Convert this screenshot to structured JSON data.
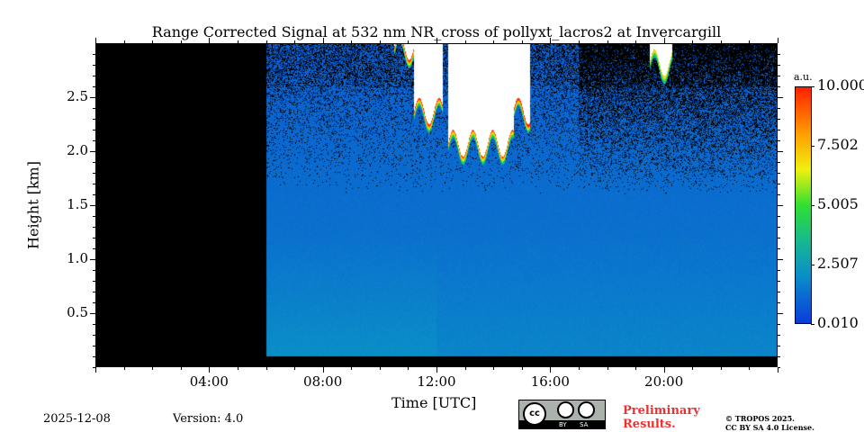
{
  "chart_data": {
    "type": "heatmap",
    "title": "Range Corrected Signal at 532 nm NR_cross of pollyxt_lacros2 at Invercargill",
    "xlabel": "Time [UTC]",
    "ylabel": "Height [km]",
    "xlim_hours": [
      0,
      24
    ],
    "ylim_km": [
      0,
      3.0
    ],
    "xticks": [
      "04:00",
      "08:00",
      "12:00",
      "16:00",
      "20:00"
    ],
    "xtick_hours": [
      4,
      8,
      12,
      16,
      20
    ],
    "yticks": [
      "0.5",
      "1.0",
      "1.5",
      "2.0",
      "2.5"
    ],
    "ytick_values": [
      0.5,
      1.0,
      1.5,
      2.0,
      2.5
    ],
    "colorbar": {
      "label": "a.u.",
      "ticks": [
        "10.000",
        "7.502",
        "5.005",
        "2.507",
        "0.010"
      ],
      "tick_values": [
        10.0,
        7.502,
        5.005,
        2.507,
        0.01
      ],
      "range": [
        0.01,
        10.0
      ],
      "colormap": "jet"
    },
    "no_data_before_hour": 6.0,
    "typical_signal": 1.6,
    "clouds": [
      {
        "start_hour": 10.5,
        "end_hour": 11.2,
        "base_km": 2.9,
        "peak": 9
      },
      {
        "start_hour": 11.2,
        "end_hour": 12.2,
        "base_km": 2.3,
        "peak": 9
      },
      {
        "start_hour": 12.4,
        "end_hour": 14.7,
        "base_km": 2.0,
        "peak": 8
      },
      {
        "start_hour": 14.7,
        "end_hour": 15.3,
        "base_km": 2.3,
        "peak": 10
      },
      {
        "start_hour": 19.5,
        "end_hour": 20.3,
        "base_km": 2.75,
        "peak": 6
      }
    ]
  },
  "footer": {
    "date": "2025-12-08",
    "version": "Version: 4.0",
    "preliminary": "Preliminary Results.",
    "copyright": "© TROPOS 2025.",
    "license": "CC BY SA 4.0 License.",
    "cc_by": "BY",
    "cc_sa": "SA"
  }
}
